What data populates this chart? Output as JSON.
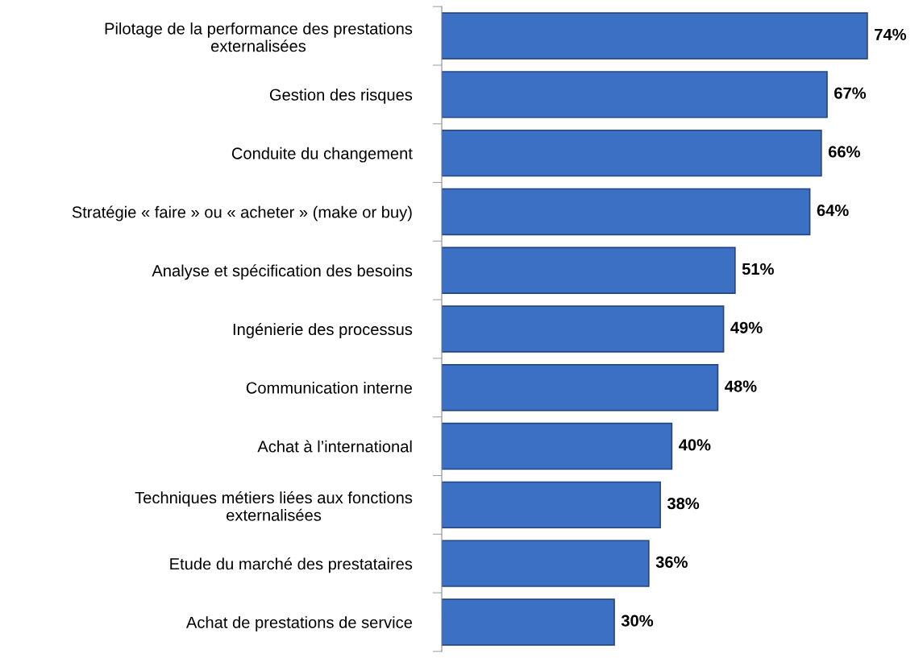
{
  "chart_data": {
    "type": "bar",
    "orientation": "horizontal",
    "categories": [
      "Pilotage de la performance des prestations\nexternalisées",
      "Gestion des risques",
      "Conduite du changement",
      "Stratégie « faire » ou « acheter » (make or buy)",
      "Analyse et spécification des besoins",
      "Ingénierie des processus",
      "Communication interne",
      "Achat à l’international",
      "Techniques métiers liées aux fonctions\nexternalisées",
      "Etude du marché des prestataires",
      "Achat de prestations de service"
    ],
    "values": [
      74,
      67,
      66,
      64,
      51,
      49,
      48,
      40,
      38,
      36,
      30
    ],
    "value_labels": [
      "74%",
      "67%",
      "66%",
      "64%",
      "51%",
      "49%",
      "48%",
      "40%",
      "38%",
      "36%",
      "30%"
    ],
    "color": "#3b70c4",
    "grid": false,
    "legend": false
  }
}
